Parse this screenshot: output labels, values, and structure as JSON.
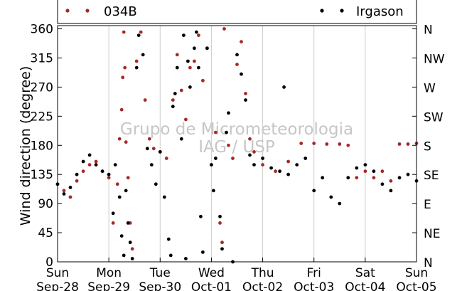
{
  "chart_data": {
    "type": "scatter",
    "title": "",
    "ylabel": "Wind direction (degree)",
    "xlabel": "",
    "ylim": [
      0,
      365
    ],
    "yticks": [
      0,
      45,
      90,
      135,
      180,
      225,
      270,
      315,
      360
    ],
    "ytick_labels": [
      "0",
      "45",
      "90",
      "135",
      "180",
      "225",
      "270",
      "315",
      "360"
    ],
    "y2ticks": [
      0,
      45,
      90,
      135,
      180,
      225,
      270,
      315,
      360
    ],
    "y2tick_labels": [
      "N",
      "NE",
      "E",
      "SE",
      "S",
      "SW",
      "W",
      "NW",
      "N"
    ],
    "xlim": [
      "2014-09-28",
      "2014-10-05"
    ],
    "x_ticks": [
      {
        "x": "2014-09-28",
        "day": "Sun",
        "date": "Sep-28"
      },
      {
        "x": "2014-09-29",
        "day": "Mon",
        "date": "Sep-29"
      },
      {
        "x": "2014-09-30",
        "day": "Tue",
        "date": "Sep-30"
      },
      {
        "x": "2014-10-01",
        "day": "Wed",
        "date": "Oct-01"
      },
      {
        "x": "2014-10-02",
        "day": "Thu",
        "date": "Oct-02"
      },
      {
        "x": "2014-10-03",
        "day": "Fri",
        "date": "Oct-03"
      },
      {
        "x": "2014-10-04",
        "day": "Sat",
        "date": "Oct-04"
      },
      {
        "x": "2014-10-05",
        "day": "Sun",
        "date": "Oct-05"
      }
    ],
    "grid": "vertical",
    "legend_position": "top",
    "watermark": [
      "Grupo de Micrometeorologia",
      "IAG / USP"
    ],
    "series": [
      {
        "name": "034B",
        "color": "#a52a2a",
        "points": [
          [
            "2014-09-28T00:00",
            120
          ],
          [
            "2014-09-28T03:00",
            110
          ],
          [
            "2014-09-28T06:00",
            100
          ],
          [
            "2014-09-28T09:00",
            125
          ],
          [
            "2014-09-28T12:00",
            140
          ],
          [
            "2014-09-28T15:00",
            150
          ],
          [
            "2014-09-28T18:00",
            155
          ],
          [
            "2014-09-28T21:00",
            140
          ],
          [
            "2014-09-29T00:00",
            130
          ],
          [
            "2014-09-29T02:00",
            60
          ],
          [
            "2014-09-29T04:00",
            120
          ],
          [
            "2014-09-29T05:00",
            190
          ],
          [
            "2014-09-29T06:00",
            235
          ],
          [
            "2014-09-29T06:30",
            285
          ],
          [
            "2014-09-29T07:00",
            355
          ],
          [
            "2014-09-29T07:30",
            300
          ],
          [
            "2014-09-29T08:00",
            185
          ],
          [
            "2014-09-29T09:00",
            130
          ],
          [
            "2014-09-29T10:00",
            60
          ],
          [
            "2014-09-29T11:00",
            20
          ],
          [
            "2014-09-29T13:00",
            310
          ],
          [
            "2014-09-29T15:00",
            355
          ],
          [
            "2014-09-29T17:00",
            250
          ],
          [
            "2014-09-29T19:00",
            190
          ],
          [
            "2014-09-29T21:00",
            175
          ],
          [
            "2014-09-30T00:00",
            170
          ],
          [
            "2014-09-30T03:00",
            160
          ],
          [
            "2014-09-30T06:00",
            250
          ],
          [
            "2014-09-30T08:00",
            320
          ],
          [
            "2014-09-30T10:00",
            265
          ],
          [
            "2014-09-30T12:00",
            220
          ],
          [
            "2014-09-30T14:00",
            300
          ],
          [
            "2014-09-30T16:00",
            310
          ],
          [
            "2014-09-30T18:00",
            350
          ],
          [
            "2014-09-30T20:00",
            280
          ],
          [
            "2014-09-30T22:00",
            330
          ],
          [
            "2014-10-01T00:00",
            150
          ],
          [
            "2014-10-01T02:00",
            200
          ],
          [
            "2014-10-01T04:00",
            60
          ],
          [
            "2014-10-01T05:00",
            30
          ],
          [
            "2014-10-01T06:00",
            360
          ],
          [
            "2014-10-01T08:00",
            180
          ],
          [
            "2014-10-01T10:00",
            160
          ],
          [
            "2014-10-01T12:00",
            305
          ],
          [
            "2014-10-01T14:00",
            340
          ],
          [
            "2014-10-01T16:00",
            260
          ],
          [
            "2014-10-01T18:00",
            190
          ],
          [
            "2014-10-01T20:00",
            170
          ],
          [
            "2014-10-02T00:00",
            150
          ],
          [
            "2014-10-02T06:00",
            140
          ],
          [
            "2014-10-02T12:00",
            155
          ],
          [
            "2014-10-02T18:00",
            183
          ],
          [
            "2014-10-03T00:00",
            183
          ],
          [
            "2014-10-03T06:00",
            182
          ],
          [
            "2014-10-03T12:00",
            182
          ],
          [
            "2014-10-03T16:00",
            180
          ],
          [
            "2014-10-03T20:00",
            130
          ],
          [
            "2014-10-04T00:00",
            140
          ],
          [
            "2014-10-04T04:00",
            130
          ],
          [
            "2014-10-04T08:00",
            140
          ],
          [
            "2014-10-04T12:00",
            125
          ],
          [
            "2014-10-04T16:00",
            182
          ],
          [
            "2014-10-04T20:00",
            182
          ],
          [
            "2014-10-05T00:00",
            183
          ]
        ]
      },
      {
        "name": "Irgason",
        "color": "#000000",
        "points": [
          [
            "2014-09-28T00:00",
            120
          ],
          [
            "2014-09-28T03:00",
            105
          ],
          [
            "2014-09-28T06:00",
            115
          ],
          [
            "2014-09-28T09:00",
            135
          ],
          [
            "2014-09-28T12:00",
            155
          ],
          [
            "2014-09-28T15:00",
            165
          ],
          [
            "2014-09-28T18:00",
            150
          ],
          [
            "2014-09-28T21:00",
            140
          ],
          [
            "2014-09-29T00:00",
            135
          ],
          [
            "2014-09-29T02:00",
            75
          ],
          [
            "2014-09-29T03:00",
            150
          ],
          [
            "2014-09-29T05:00",
            100
          ],
          [
            "2014-09-29T06:00",
            40
          ],
          [
            "2014-09-29T07:00",
            10
          ],
          [
            "2014-09-29T08:00",
            110
          ],
          [
            "2014-09-29T09:00",
            60
          ],
          [
            "2014-09-29T10:00",
            30
          ],
          [
            "2014-09-29T11:00",
            5
          ],
          [
            "2014-09-29T13:00",
            300
          ],
          [
            "2014-09-29T14:00",
            350
          ],
          [
            "2014-09-29T16:00",
            320
          ],
          [
            "2014-09-29T18:00",
            175
          ],
          [
            "2014-09-29T20:00",
            150
          ],
          [
            "2014-09-29T22:00",
            120
          ],
          [
            "2014-09-30T00:00",
            170
          ],
          [
            "2014-09-30T02:00",
            100
          ],
          [
            "2014-09-30T04:00",
            35
          ],
          [
            "2014-09-30T05:00",
            10
          ],
          [
            "2014-09-30T06:00",
            240
          ],
          [
            "2014-09-30T07:00",
            260
          ],
          [
            "2014-09-30T08:00",
            300
          ],
          [
            "2014-09-30T10:00",
            190
          ],
          [
            "2014-09-30T11:00",
            350
          ],
          [
            "2014-09-30T12:00",
            5
          ],
          [
            "2014-09-30T13:00",
            310
          ],
          [
            "2014-09-30T14:00",
            270
          ],
          [
            "2014-09-30T16:00",
            330
          ],
          [
            "2014-09-30T17:00",
            355
          ],
          [
            "2014-09-30T18:00",
            300
          ],
          [
            "2014-09-30T19:00",
            70
          ],
          [
            "2014-09-30T20:00",
            15
          ],
          [
            "2014-09-30T22:00",
            330
          ],
          [
            "2014-10-01T00:00",
            150
          ],
          [
            "2014-10-01T01:00",
            110
          ],
          [
            "2014-10-01T02:00",
            160
          ],
          [
            "2014-10-01T04:00",
            70
          ],
          [
            "2014-10-01T05:00",
            20
          ],
          [
            "2014-10-01T07:00",
            200
          ],
          [
            "2014-10-01T08:00",
            230
          ],
          [
            "2014-10-01T10:00",
            0
          ],
          [
            "2014-10-01T12:00",
            320
          ],
          [
            "2014-10-01T14:00",
            290
          ],
          [
            "2014-10-01T16:00",
            250
          ],
          [
            "2014-10-01T18:00",
            165
          ],
          [
            "2014-10-01T20:00",
            150
          ],
          [
            "2014-10-02T00:00",
            160
          ],
          [
            "2014-10-02T04:00",
            145
          ],
          [
            "2014-10-02T08:00",
            140
          ],
          [
            "2014-10-02T10:00",
            270
          ],
          [
            "2014-10-02T12:00",
            135
          ],
          [
            "2014-10-02T16:00",
            150
          ],
          [
            "2014-10-02T20:00",
            160
          ],
          [
            "2014-10-03T00:00",
            110
          ],
          [
            "2014-10-03T04:00",
            130
          ],
          [
            "2014-10-03T08:00",
            100
          ],
          [
            "2014-10-03T12:00",
            90
          ],
          [
            "2014-10-03T16:00",
            130
          ],
          [
            "2014-10-03T20:00",
            145
          ],
          [
            "2014-10-04T00:00",
            150
          ],
          [
            "2014-10-04T04:00",
            140
          ],
          [
            "2014-10-04T08:00",
            120
          ],
          [
            "2014-10-04T12:00",
            110
          ],
          [
            "2014-10-04T16:00",
            130
          ],
          [
            "2014-10-04T20:00",
            135
          ],
          [
            "2014-10-05T00:00",
            125
          ]
        ]
      }
    ]
  }
}
